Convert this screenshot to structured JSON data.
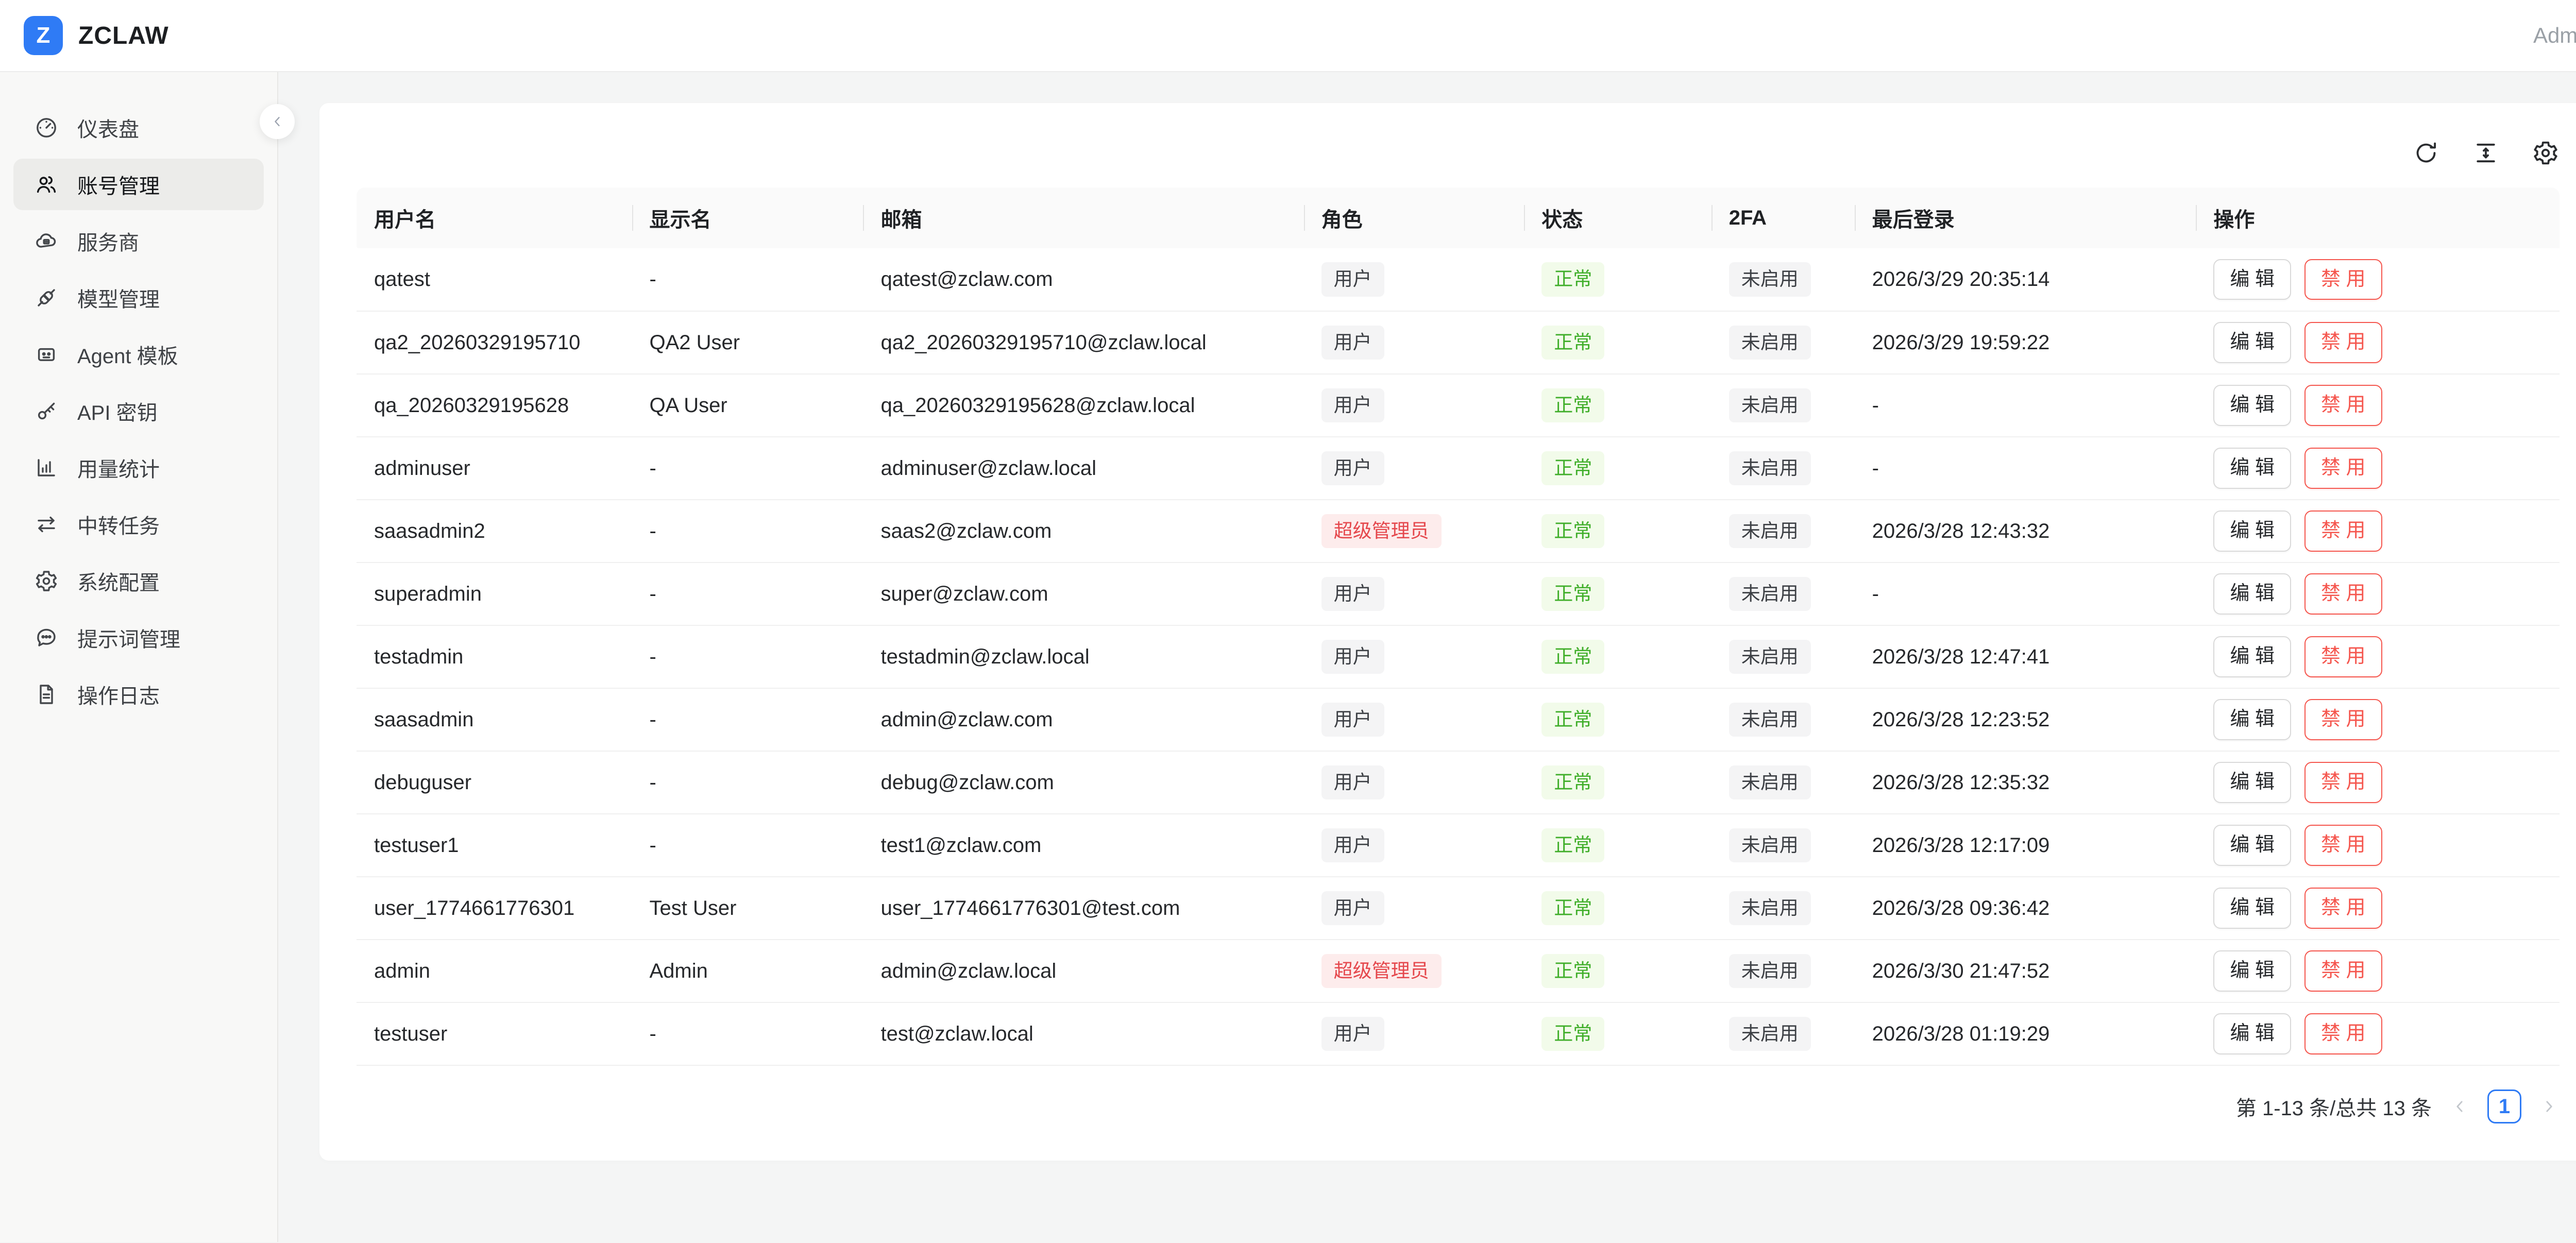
{
  "colors": {
    "brand_blue": "#2f7bf5",
    "danger_red": "#e5484d",
    "danger_border_red": "#f5564e",
    "success_green": "#3fae29",
    "tag_green_bg": "#f2fbea",
    "tag_red_bg": "#fdecec",
    "tag_gray_bg": "#f4f4f5",
    "main_bg": "#f4f5f5"
  },
  "header": {
    "brand": "ZCLAW",
    "logo_letter": "Z",
    "user": "Admin"
  },
  "sidebar": {
    "items": [
      {
        "label": "仪表盘",
        "icon": "dashboard-icon",
        "active": false
      },
      {
        "label": "账号管理",
        "icon": "users-icon",
        "active": true
      },
      {
        "label": "服务商",
        "icon": "cloud-icon",
        "active": false
      },
      {
        "label": "模型管理",
        "icon": "plug-icon",
        "active": false
      },
      {
        "label": "Agent 模板",
        "icon": "robot-icon",
        "active": false
      },
      {
        "label": "API 密钥",
        "icon": "key-icon",
        "active": false
      },
      {
        "label": "用量统计",
        "icon": "bar-chart-icon",
        "active": false
      },
      {
        "label": "中转任务",
        "icon": "swap-arrows-icon",
        "active": false
      },
      {
        "label": "系统配置",
        "icon": "gear-icon",
        "active": false
      },
      {
        "label": "提示词管理",
        "icon": "chat-dots-icon",
        "active": false
      },
      {
        "label": "操作日志",
        "icon": "document-icon",
        "active": false
      }
    ]
  },
  "toolbar": {
    "icons": [
      {
        "name": "refresh-icon"
      },
      {
        "name": "column-height-icon"
      },
      {
        "name": "settings-gear-icon"
      }
    ]
  },
  "table": {
    "columns": [
      "用户名",
      "显示名",
      "邮箱",
      "角色",
      "状态",
      "2FA",
      "最后登录",
      "操作"
    ],
    "actions": {
      "edit": "编 辑",
      "disable": "禁 用"
    },
    "rows": [
      {
        "username": "qatest",
        "display_name": "-",
        "email": "qatest@zclaw.com",
        "role": "用户",
        "role_type": "user",
        "status": "正常",
        "twofa": "未启用",
        "last_login": "2026/3/29 20:35:14"
      },
      {
        "username": "qa2_20260329195710",
        "display_name": "QA2 User",
        "email": "qa2_20260329195710@zclaw.local",
        "role": "用户",
        "role_type": "user",
        "status": "正常",
        "twofa": "未启用",
        "last_login": "2026/3/29 19:59:22"
      },
      {
        "username": "qa_20260329195628",
        "display_name": "QA User",
        "email": "qa_20260329195628@zclaw.local",
        "role": "用户",
        "role_type": "user",
        "status": "正常",
        "twofa": "未启用",
        "last_login": "-"
      },
      {
        "username": "adminuser",
        "display_name": "-",
        "email": "adminuser@zclaw.local",
        "role": "用户",
        "role_type": "user",
        "status": "正常",
        "twofa": "未启用",
        "last_login": "-"
      },
      {
        "username": "saasadmin2",
        "display_name": "-",
        "email": "saas2@zclaw.com",
        "role": "超级管理员",
        "role_type": "super",
        "status": "正常",
        "twofa": "未启用",
        "last_login": "2026/3/28 12:43:32"
      },
      {
        "username": "superadmin",
        "display_name": "-",
        "email": "super@zclaw.com",
        "role": "用户",
        "role_type": "user",
        "status": "正常",
        "twofa": "未启用",
        "last_login": "-"
      },
      {
        "username": "testadmin",
        "display_name": "-",
        "email": "testadmin@zclaw.local",
        "role": "用户",
        "role_type": "user",
        "status": "正常",
        "twofa": "未启用",
        "last_login": "2026/3/28 12:47:41"
      },
      {
        "username": "saasadmin",
        "display_name": "-",
        "email": "admin@zclaw.com",
        "role": "用户",
        "role_type": "user",
        "status": "正常",
        "twofa": "未启用",
        "last_login": "2026/3/28 12:23:52"
      },
      {
        "username": "debuguser",
        "display_name": "-",
        "email": "debug@zclaw.com",
        "role": "用户",
        "role_type": "user",
        "status": "正常",
        "twofa": "未启用",
        "last_login": "2026/3/28 12:35:32"
      },
      {
        "username": "testuser1",
        "display_name": "-",
        "email": "test1@zclaw.com",
        "role": "用户",
        "role_type": "user",
        "status": "正常",
        "twofa": "未启用",
        "last_login": "2026/3/28 12:17:09"
      },
      {
        "username": "user_1774661776301",
        "display_name": "Test User",
        "email": "user_1774661776301@test.com",
        "role": "用户",
        "role_type": "user",
        "status": "正常",
        "twofa": "未启用",
        "last_login": "2026/3/28 09:36:42"
      },
      {
        "username": "admin",
        "display_name": "Admin",
        "email": "admin@zclaw.local",
        "role": "超级管理员",
        "role_type": "super",
        "status": "正常",
        "twofa": "未启用",
        "last_login": "2026/3/30 21:47:52"
      },
      {
        "username": "testuser",
        "display_name": "-",
        "email": "test@zclaw.local",
        "role": "用户",
        "role_type": "user",
        "status": "正常",
        "twofa": "未启用",
        "last_login": "2026/3/28 01:19:29"
      }
    ]
  },
  "pagination": {
    "summary": "第 1-13 条/总共 13 条",
    "page": "1",
    "prev_icon": "chevron-left-icon",
    "next_icon": "chevron-right-icon"
  }
}
